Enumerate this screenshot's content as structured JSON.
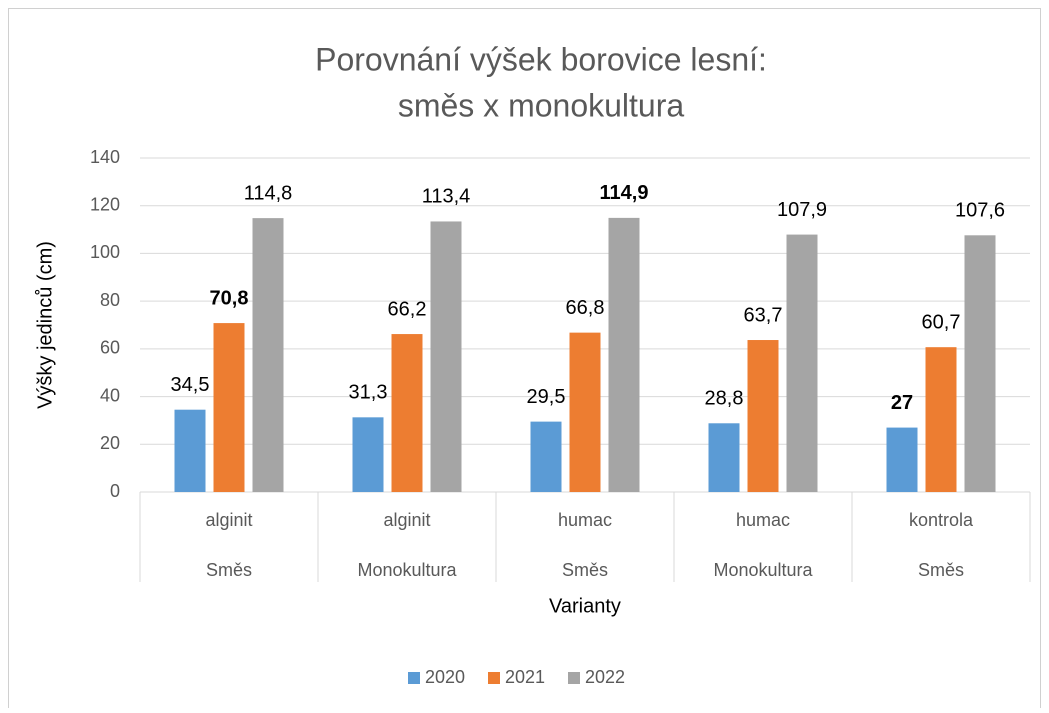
{
  "chart_data": {
    "type": "bar",
    "title": [
      "Porovnání výšek borovice lesní:",
      "směs x monokultura"
    ],
    "y_label": "Výšky jedinců (cm)",
    "x_label": "Varianty",
    "categories": [
      "alginit",
      "alginit",
      "humac",
      "humac",
      "kontrola"
    ],
    "groups": [
      "Směs",
      "Monokultura",
      "Směs",
      "Monokultura",
      "Směs"
    ],
    "series": [
      {
        "name": "2020",
        "color": "#5b9bd5",
        "values": [
          34.5,
          31.3,
          29.5,
          28.8,
          27
        ],
        "value_labels": [
          "34,5",
          "31,3",
          "29,5",
          "28,8",
          "27"
        ],
        "bold": [
          false,
          false,
          false,
          false,
          true
        ]
      },
      {
        "name": "2021",
        "color": "#ed7d31",
        "values": [
          70.8,
          66.2,
          66.8,
          63.7,
          60.7
        ],
        "value_labels": [
          "70,8",
          "66,2",
          "66,8",
          "63,7",
          "60,7"
        ],
        "bold": [
          true,
          false,
          false,
          false,
          false
        ]
      },
      {
        "name": "2022",
        "color": "#a5a5a5",
        "values": [
          114.8,
          113.4,
          114.9,
          107.9,
          107.6
        ],
        "value_labels": [
          "114,8",
          "113,4",
          "114,9",
          "107,9",
          "107,6"
        ],
        "bold": [
          false,
          false,
          true,
          false,
          false
        ]
      }
    ],
    "ylim": [
      0,
      140
    ],
    "yticks": [
      0,
      20,
      40,
      60,
      80,
      100,
      120,
      140
    ],
    "grid": true,
    "legend": "bottom"
  }
}
